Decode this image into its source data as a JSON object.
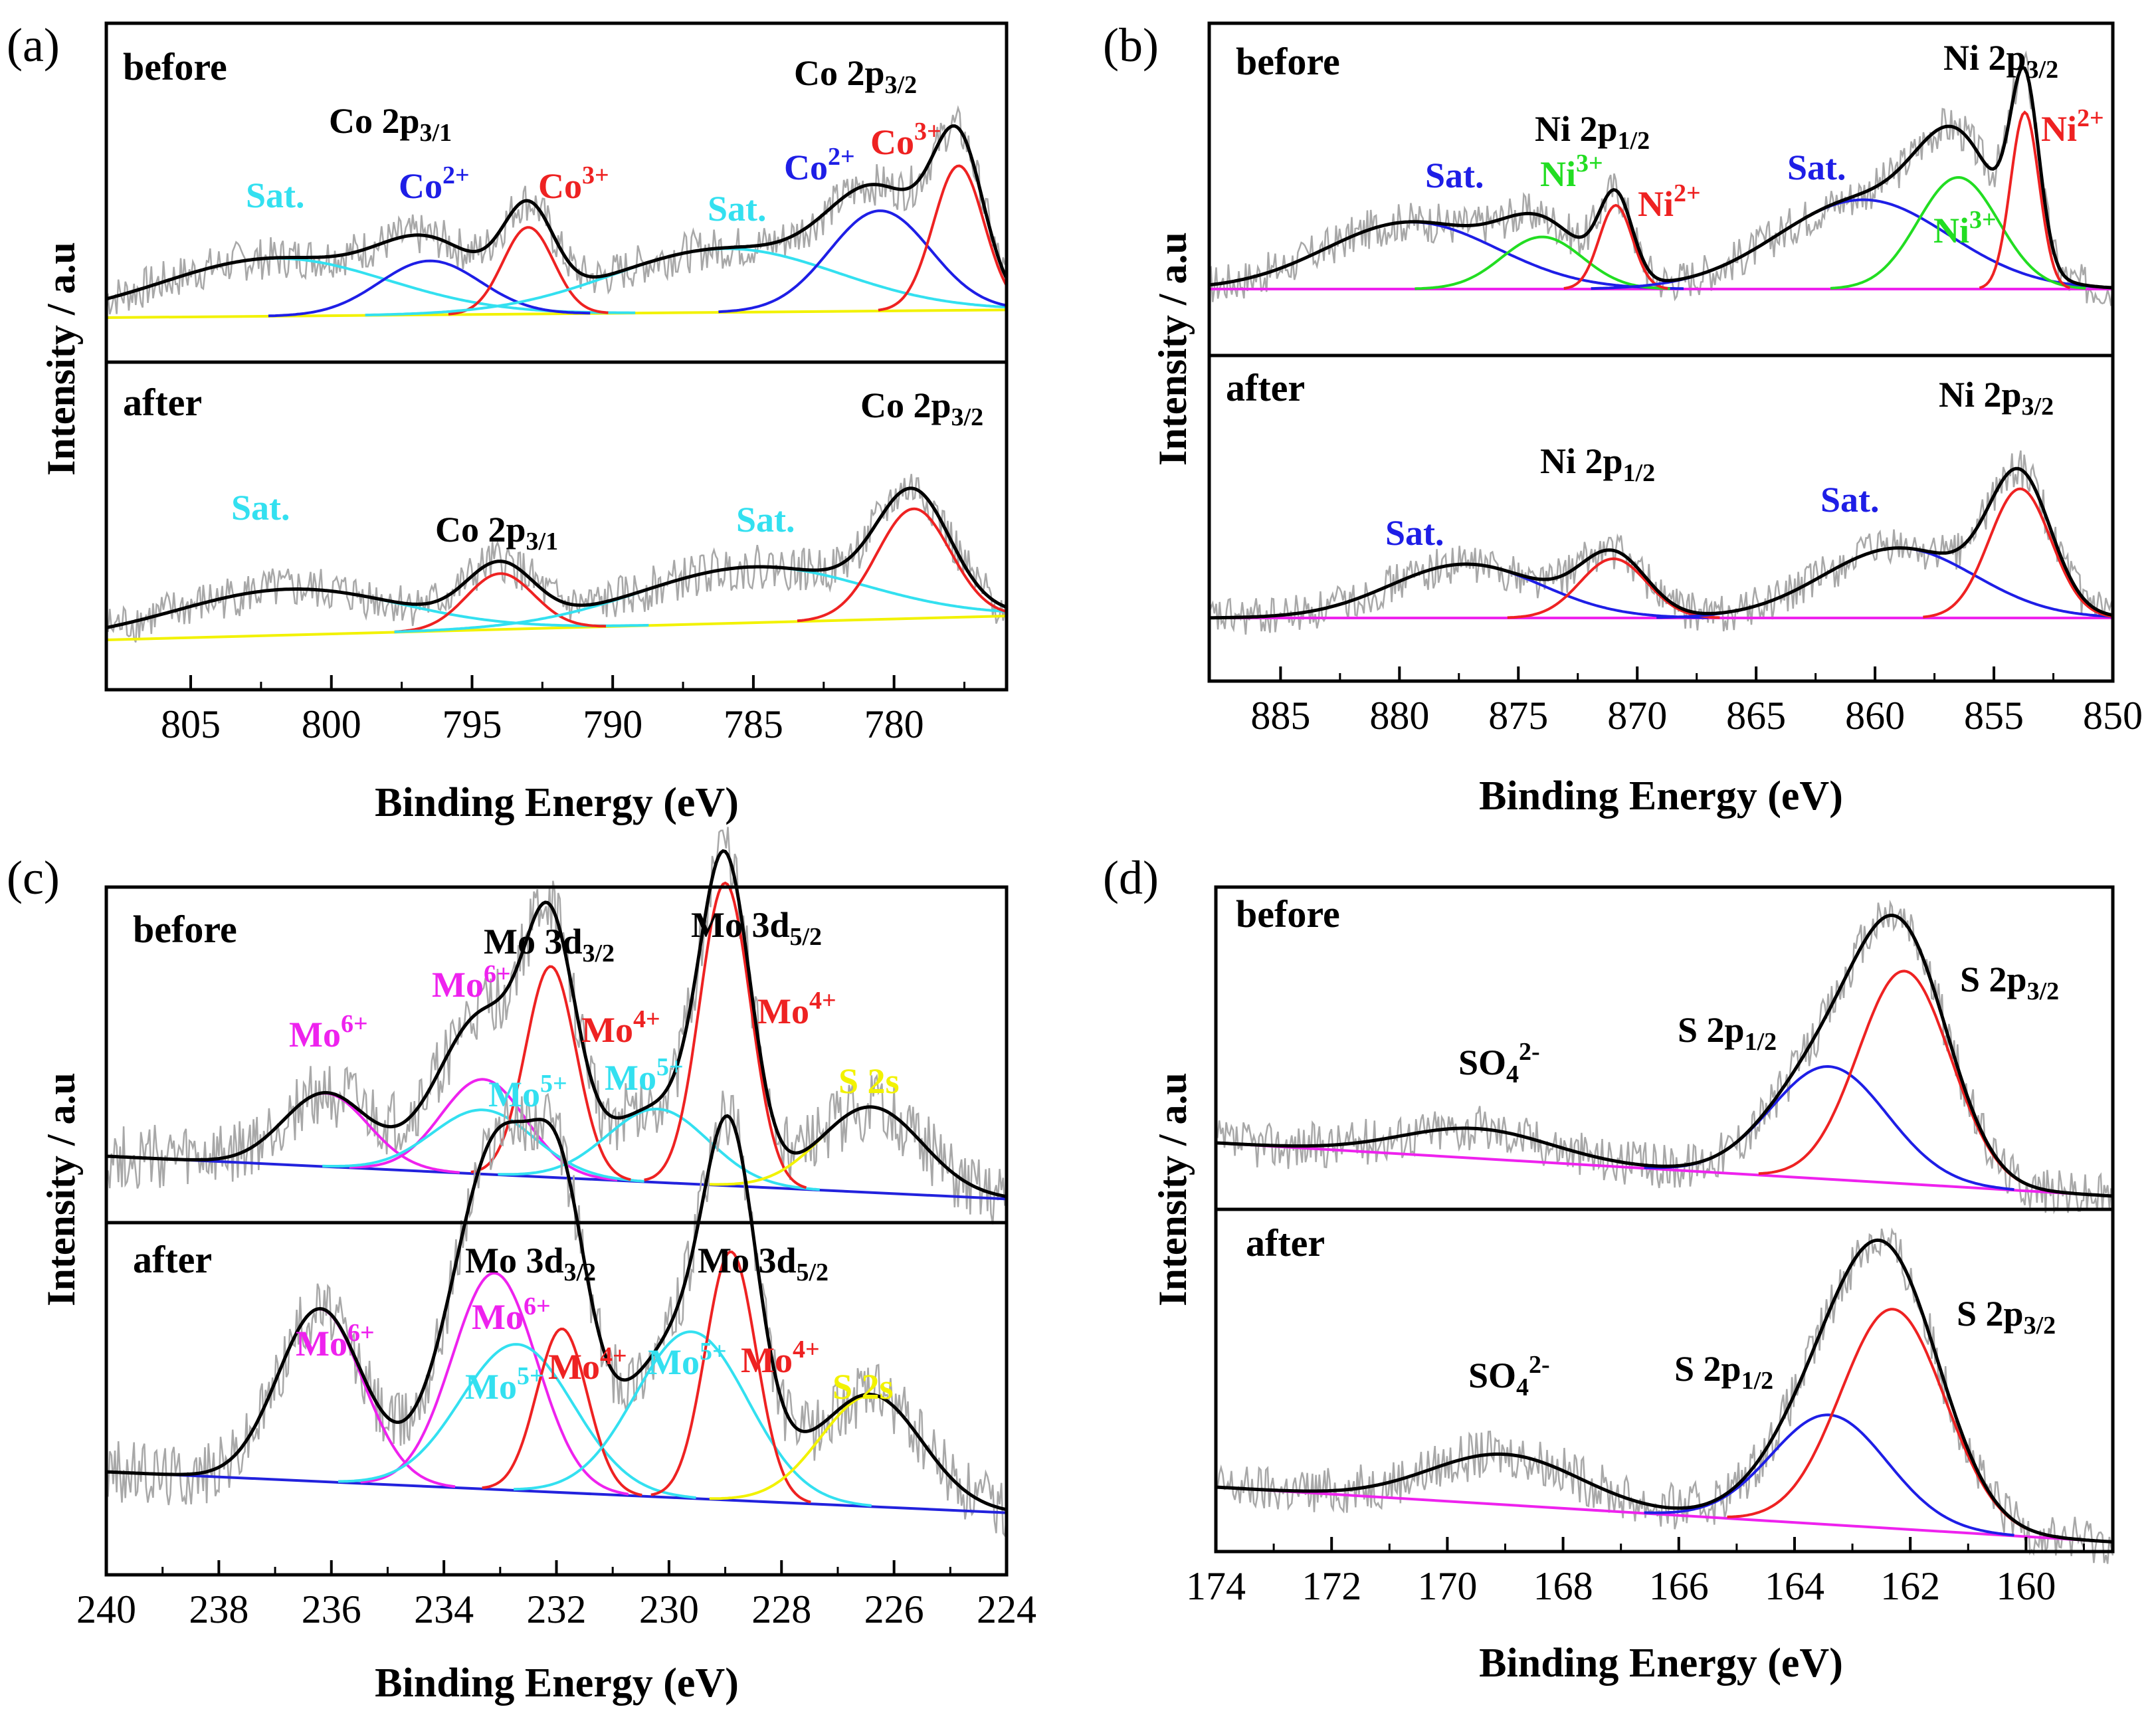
{
  "chart_data": [
    {
      "type": "line",
      "panel_label": "(a)",
      "xlabel": "Binding Energy (eV)",
      "ylabel": "Intensity / a.u",
      "xlim": [
        808,
        776
      ],
      "xticks": [
        805,
        800,
        795,
        790,
        785,
        780
      ],
      "sections": [
        {
          "name": "before",
          "baseline": [
            [
              808,
              0.0
            ],
            [
              776,
              0.04
            ]
          ],
          "peaks": [
            {
              "label": "Sat.",
              "center": 802.0,
              "height": 0.3,
              "width": 4.0,
              "color": "#33e0f0"
            },
            {
              "label": "Co2+",
              "center": 796.5,
              "height": 0.28,
              "width": 1.8,
              "color": "#1e1ee6"
            },
            {
              "label": "Co3+",
              "center": 793.0,
              "height": 0.45,
              "width": 0.9,
              "color": "#ee2222"
            },
            {
              "label": "Sat.",
              "center": 786.0,
              "height": 0.33,
              "width": 4.0,
              "color": "#33e0f0"
            },
            {
              "label": "Co2+",
              "center": 780.5,
              "height": 0.52,
              "width": 1.8,
              "color": "#1e1ee6"
            },
            {
              "label": "Co3+",
              "center": 777.7,
              "height": 0.75,
              "width": 0.9,
              "color": "#ee2222"
            }
          ],
          "envelope_color": "#000000",
          "baseline_color": "#f2f200",
          "raw_color": "#a8a8a8"
        },
        {
          "name": "after",
          "baseline": [
            [
              808,
              0.0
            ],
            [
              776,
              0.12
            ]
          ],
          "peaks": [
            {
              "label": "Sat.",
              "center": 801.5,
              "height": 0.23,
              "width": 4.0,
              "color": "#33e0f0"
            },
            {
              "label": "Co 2p3/1",
              "center": 794.0,
              "height": 0.28,
              "width": 1.2,
              "color": "#ee2222"
            },
            {
              "label": "Sat.",
              "center": 785.0,
              "height": 0.28,
              "width": 4.0,
              "color": "#33e0f0"
            },
            {
              "label": "Co 2p3/2",
              "center": 779.3,
              "height": 0.55,
              "width": 1.3,
              "color": "#ee2222"
            }
          ],
          "envelope_color": "#000000",
          "baseline_color": "#f2f200",
          "raw_color": "#a8a8a8"
        }
      ]
    },
    {
      "type": "line",
      "panel_label": "(b)",
      "xlabel": "Binding Energy (eV)",
      "ylabel": "Intensity / a.u",
      "xlim": [
        888,
        850
      ],
      "xticks": [
        885,
        880,
        875,
        870,
        865,
        860,
        855,
        850
      ],
      "sections": [
        {
          "name": "before",
          "baseline": [
            [
              888,
              0.0
            ],
            [
              850,
              0.0
            ]
          ],
          "peaks": [
            {
              "label": "Sat.",
              "center": 879.5,
              "height": 0.36,
              "width": 3.6,
              "color": "#1e1ee6"
            },
            {
              "label": "Ni3+",
              "center": 874.0,
              "height": 0.28,
              "width": 1.7,
              "color": "#22dd22"
            },
            {
              "label": "Ni2+",
              "center": 870.9,
              "height": 0.45,
              "width": 0.7,
              "color": "#ee2222"
            },
            {
              "label": "Sat.",
              "center": 860.5,
              "height": 0.48,
              "width": 3.6,
              "color": "#1e1ee6"
            },
            {
              "label": "Ni3+",
              "center": 856.5,
              "height": 0.6,
              "width": 1.7,
              "color": "#22dd22"
            },
            {
              "label": "Ni2+",
              "center": 853.7,
              "height": 0.95,
              "width": 0.6,
              "color": "#ee2222"
            }
          ],
          "envelope_color": "#000000",
          "baseline_color": "#ee22ee",
          "raw_color": "#a8a8a8"
        },
        {
          "name": "after",
          "baseline": [
            [
              888,
              0.0
            ],
            [
              850,
              0.0
            ]
          ],
          "peaks": [
            {
              "label": "Sat.",
              "center": 877.2,
              "height": 0.3,
              "width": 3.2,
              "color": "#1e1ee6"
            },
            {
              "label": "Ni 2p1/2",
              "center": 871.0,
              "height": 0.33,
              "width": 1.4,
              "color": "#ee2222"
            },
            {
              "label": "Sat.",
              "center": 859.0,
              "height": 0.39,
              "width": 3.2,
              "color": "#1e1ee6"
            },
            {
              "label": "Ni 2p3/2",
              "center": 853.9,
              "height": 0.72,
              "width": 1.3,
              "color": "#ee2222"
            }
          ],
          "envelope_color": "#000000",
          "baseline_color": "#ee22ee",
          "raw_color": "#a8a8a8"
        }
      ]
    },
    {
      "type": "line",
      "panel_label": "(c)",
      "xlabel": "Binding Energy (eV)",
      "ylabel": "Intensity / a.u",
      "xlim": [
        240,
        224
      ],
      "xticks": [
        240,
        238,
        236,
        234,
        232,
        230,
        228,
        226,
        224
      ],
      "sections": [
        {
          "name": "before",
          "baseline": [
            [
              240,
              0.0
            ],
            [
              224,
              -0.14
            ]
          ],
          "peaks": [
            {
              "label": "Mo6+",
              "center": 236.1,
              "height": 0.24,
              "width": 0.75,
              "color": "#ee22ee"
            },
            {
              "label": "Mo6+",
              "center": 233.3,
              "height": 0.31,
              "width": 0.75,
              "color": "#ee22ee"
            },
            {
              "label": "Mo5+",
              "center": 233.3,
              "height": 0.21,
              "width": 0.9,
              "color": "#33e0f0"
            },
            {
              "label": "Mo4+",
              "center": 232.1,
              "height": 0.69,
              "width": 0.45,
              "color": "#ee2222"
            },
            {
              "label": "Mo5+",
              "center": 230.2,
              "height": 0.24,
              "width": 0.9,
              "color": "#33e0f0"
            },
            {
              "label": "Mo4+",
              "center": 229.0,
              "height": 0.99,
              "width": 0.45,
              "color": "#ee2222"
            },
            {
              "label": "S 2s",
              "center": 226.4,
              "height": 0.28,
              "width": 0.9,
              "color": "#f2f200"
            }
          ],
          "envelope_color": "#000000",
          "baseline_color": "#2222dd",
          "raw_color": "#a8a8a8"
        },
        {
          "name": "after",
          "baseline": [
            [
              240,
              0.0
            ],
            [
              224,
              -0.14
            ]
          ],
          "peaks": [
            {
              "label": "Mo6+",
              "center": 236.2,
              "height": 0.59,
              "width": 0.75,
              "color": "#ee22ee"
            },
            {
              "label": "Mo6+",
              "center": 233.1,
              "height": 0.74,
              "width": 0.75,
              "color": "#ee22ee"
            },
            {
              "label": "Mo5+",
              "center": 232.7,
              "height": 0.5,
              "width": 1.0,
              "color": "#33e0f0"
            },
            {
              "label": "Mo4+",
              "center": 231.9,
              "height": 0.56,
              "width": 0.45,
              "color": "#ee2222"
            },
            {
              "label": "Mo5+",
              "center": 229.6,
              "height": 0.57,
              "width": 1.0,
              "color": "#33e0f0"
            },
            {
              "label": "Mo4+",
              "center": 228.9,
              "height": 0.85,
              "width": 0.45,
              "color": "#ee2222"
            },
            {
              "label": "S 2s",
              "center": 226.4,
              "height": 0.38,
              "width": 0.9,
              "color": "#f2f200"
            }
          ],
          "envelope_color": "#000000",
          "baseline_color": "#2222dd",
          "raw_color": "#a8a8a8"
        }
      ]
    },
    {
      "type": "line",
      "panel_label": "(d)",
      "xlabel": "Binding Energy (eV)",
      "ylabel": "Intensity / a.u",
      "xlim": [
        174,
        158.5
      ],
      "xticks": [
        174,
        172,
        170,
        168,
        166,
        164,
        162,
        160
      ],
      "sections": [
        {
          "name": "before",
          "baseline": [
            [
              174,
              0.0
            ],
            [
              158.5,
              -0.25
            ]
          ],
          "peaks": [
            {
              "label": "SO4 2-",
              "center": 169.5,
              "height": 0.14,
              "width": 1.3,
              "color": "#000000"
            },
            {
              "label": "S 2p1/2",
              "center": 163.4,
              "height": 0.53,
              "width": 1.0,
              "color": "#1e1ee6"
            },
            {
              "label": "S 2p3/2",
              "center": 162.1,
              "height": 1.0,
              "width": 0.8,
              "color": "#ee2222"
            }
          ],
          "envelope_color": "#000000",
          "baseline_color": "#ee22ee",
          "raw_color": "#a8a8a8"
        },
        {
          "name": "after",
          "baseline": [
            [
              174,
              0.0
            ],
            [
              158.5,
              -0.25
            ]
          ],
          "peaks": [
            {
              "label": "SO4 2-",
              "center": 169.0,
              "height": 0.23,
              "width": 1.3,
              "color": "#000000"
            },
            {
              "label": "S 2p1/2",
              "center": 163.4,
              "height": 0.5,
              "width": 1.0,
              "color": "#1e1ee6"
            },
            {
              "label": "S 2p3/2",
              "center": 162.3,
              "height": 1.0,
              "width": 0.9,
              "color": "#ee2222"
            }
          ],
          "envelope_color": "#000000",
          "baseline_color": "#ee22ee",
          "raw_color": "#a8a8a8"
        }
      ]
    }
  ],
  "annotations": {
    "a": {
      "before": {
        "section": "before",
        "co2p31": "Co 2p",
        "co2p31_sub": "3/1",
        "co2p32": "Co 2p",
        "co2p32_sub": "3/2",
        "sat1": "Sat.",
        "co2a": "Co",
        "co2a_sup": "2+",
        "co3a": "Co",
        "co3a_sup": "3+",
        "sat2": "Sat.",
        "co2b": "Co",
        "co2b_sup": "2+",
        "co3b": "Co",
        "co3b_sup": "3+"
      },
      "after": {
        "section": "after",
        "co2p32": "Co 2p",
        "co2p32_sub": "3/2",
        "sat1": "Sat.",
        "co2p31": "Co 2p",
        "co2p31_sub": "3/1",
        "sat2": "Sat."
      }
    },
    "b": {
      "before": {
        "section": "before",
        "ni2p32": "Ni 2p",
        "ni2p32_sub": "3/2",
        "ni2p12": "Ni 2p",
        "ni2p12_sub": "1/2",
        "sat1": "Sat.",
        "ni3a": "Ni",
        "ni3a_sup": "3+",
        "ni2a": "Ni",
        "ni2a_sup": "2+",
        "sat2": "Sat.",
        "ni3b": "Ni",
        "ni3b_sup": "3+",
        "ni2b": "Ni",
        "ni2b_sup": "2+"
      },
      "after": {
        "section": "after",
        "ni2p32": "Ni 2p",
        "ni2p32_sub": "3/2",
        "ni2p12": "Ni 2p",
        "ni2p12_sub": "1/2",
        "sat1": "Sat.",
        "sat2": "Sat."
      }
    },
    "c": {
      "before": {
        "section": "before",
        "mo3d32": "Mo 3d",
        "mo3d32_sub": "3/2",
        "mo3d52": "Mo 3d",
        "mo3d52_sub": "5/2",
        "mo6a": "Mo",
        "mo6a_sup": "6+",
        "mo6b": "Mo",
        "mo6b_sup": "6+",
        "mo5a": "Mo",
        "mo5a_sup": "5+",
        "mo4a": "Mo",
        "mo4a_sup": "4+",
        "mo5b": "Mo",
        "mo5b_sup": "5+",
        "mo4b": "Mo",
        "mo4b_sup": "4+",
        "s2s": "S 2s"
      },
      "after": {
        "section": "after",
        "mo3d32": "Mo 3d",
        "mo3d32_sub": "3/2",
        "mo3d52": "Mo 3d",
        "mo3d52_sub": "5/2",
        "mo6a": "Mo",
        "mo6a_sup": "6+",
        "mo6b": "Mo",
        "mo6b_sup": "6+",
        "mo5a": "Mo",
        "mo5a_sup": "5+",
        "mo4a": "Mo",
        "mo4a_sup": "4+",
        "mo5b": "Mo",
        "mo5b_sup": "5+",
        "mo4b": "Mo",
        "mo4b_sup": "4+",
        "s2s": "S 2s"
      }
    },
    "d": {
      "before": {
        "section": "before",
        "so4": "SO",
        "so4_sub": "4",
        "so4_sup": "2-",
        "s2p12": "S 2p",
        "s2p12_sub": "1/2",
        "s2p32": "S 2p",
        "s2p32_sub": "3/2"
      },
      "after": {
        "section": "after",
        "so4": "SO",
        "so4_sub": "4",
        "so4_sup": "2-",
        "s2p12": "S 2p",
        "s2p12_sub": "1/2",
        "s2p32": "S 2p",
        "s2p32_sub": "3/2"
      }
    }
  }
}
